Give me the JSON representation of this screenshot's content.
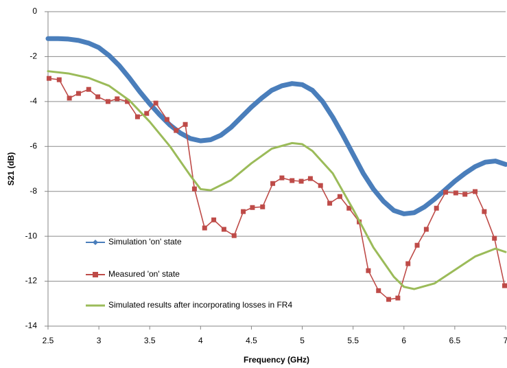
{
  "chart_data": {
    "type": "line",
    "xlabel": "Frequency (GHz)",
    "ylabel": "S21  (dB)",
    "xlim": [
      2.5,
      7
    ],
    "xticks": [
      2.5,
      3,
      3.5,
      4,
      4.5,
      5,
      5.5,
      6,
      6.5,
      7
    ],
    "ylim": [
      -14,
      0
    ],
    "yticks": [
      0,
      -2,
      -4,
      -6,
      -8,
      -10,
      -12,
      -14
    ],
    "grid": true,
    "legend": "left",
    "series": [
      {
        "name": "Simulation 'on' state",
        "color": "#4a7ebb",
        "marker": "diamond",
        "x": [
          2.5,
          2.6,
          2.7,
          2.8,
          2.9,
          3.0,
          3.1,
          3.2,
          3.3,
          3.4,
          3.5,
          3.6,
          3.7,
          3.8,
          3.9,
          4.0,
          4.1,
          4.2,
          4.3,
          4.4,
          4.5,
          4.6,
          4.7,
          4.8,
          4.9,
          5.0,
          5.1,
          5.2,
          5.3,
          5.4,
          5.5,
          5.6,
          5.7,
          5.8,
          5.9,
          6.0,
          6.1,
          6.2,
          6.3,
          6.4,
          6.5,
          6.6,
          6.7,
          6.8,
          6.9,
          7.0
        ],
        "values": [
          -1.2,
          -1.2,
          -1.22,
          -1.28,
          -1.4,
          -1.6,
          -1.95,
          -2.4,
          -2.95,
          -3.55,
          -4.1,
          -4.6,
          -5.05,
          -5.4,
          -5.65,
          -5.75,
          -5.7,
          -5.5,
          -5.15,
          -4.7,
          -4.25,
          -3.85,
          -3.5,
          -3.3,
          -3.2,
          -3.25,
          -3.5,
          -4.0,
          -4.7,
          -5.5,
          -6.35,
          -7.2,
          -7.9,
          -8.45,
          -8.85,
          -9.0,
          -8.95,
          -8.7,
          -8.35,
          -7.95,
          -7.55,
          -7.2,
          -6.9,
          -6.7,
          -6.65,
          -6.8
        ]
      },
      {
        "name": "Measured 'on' state",
        "color": "#be4b48",
        "marker": "square",
        "x": [
          2.51,
          2.61,
          2.71,
          2.8,
          2.9,
          2.99,
          3.09,
          3.18,
          3.28,
          3.38,
          3.47,
          3.56,
          3.67,
          3.76,
          3.85,
          3.94,
          4.04,
          4.13,
          4.23,
          4.33,
          4.42,
          4.51,
          4.61,
          4.71,
          4.8,
          4.9,
          4.99,
          5.08,
          5.18,
          5.27,
          5.37,
          5.46,
          5.56,
          5.65,
          5.75,
          5.85,
          5.94,
          6.04,
          6.13,
          6.22,
          6.32,
          6.41,
          6.51,
          6.6,
          6.7,
          6.79,
          6.89,
          6.99
        ],
        "values": [
          -2.97,
          -3.03,
          -3.85,
          -3.64,
          -3.46,
          -3.79,
          -4.0,
          -3.88,
          -4.0,
          -4.68,
          -4.53,
          -4.07,
          -4.8,
          -5.29,
          -5.02,
          -7.89,
          -9.63,
          -9.27,
          -9.69,
          -9.97,
          -8.9,
          -8.72,
          -8.69,
          -7.65,
          -7.4,
          -7.52,
          -7.55,
          -7.43,
          -7.74,
          -8.53,
          -8.23,
          -8.75,
          -9.36,
          -11.53,
          -12.42,
          -12.81,
          -12.75,
          -11.22,
          -10.4,
          -9.69,
          -8.75,
          -8.04,
          -8.07,
          -8.13,
          -8.01,
          -8.9,
          -10.09,
          -12.2
        ]
      },
      {
        "name": "Simulated results after incorporating losses in FR4",
        "color": "#9bbb59",
        "marker": "none",
        "x": [
          2.5,
          2.7,
          2.9,
          3.1,
          3.3,
          3.5,
          3.7,
          3.9,
          4.0,
          4.1,
          4.3,
          4.5,
          4.7,
          4.9,
          5.0,
          5.1,
          5.3,
          5.5,
          5.7,
          5.9,
          6.0,
          6.1,
          6.3,
          6.5,
          6.7,
          6.9,
          7.0
        ],
        "values": [
          -2.65,
          -2.75,
          -2.95,
          -3.3,
          -3.95,
          -4.9,
          -6.0,
          -7.3,
          -7.9,
          -7.95,
          -7.5,
          -6.75,
          -6.1,
          -5.85,
          -5.9,
          -6.2,
          -7.2,
          -8.8,
          -10.5,
          -11.8,
          -12.25,
          -12.35,
          -12.1,
          -11.5,
          -10.9,
          -10.55,
          -10.7
        ]
      }
    ]
  }
}
